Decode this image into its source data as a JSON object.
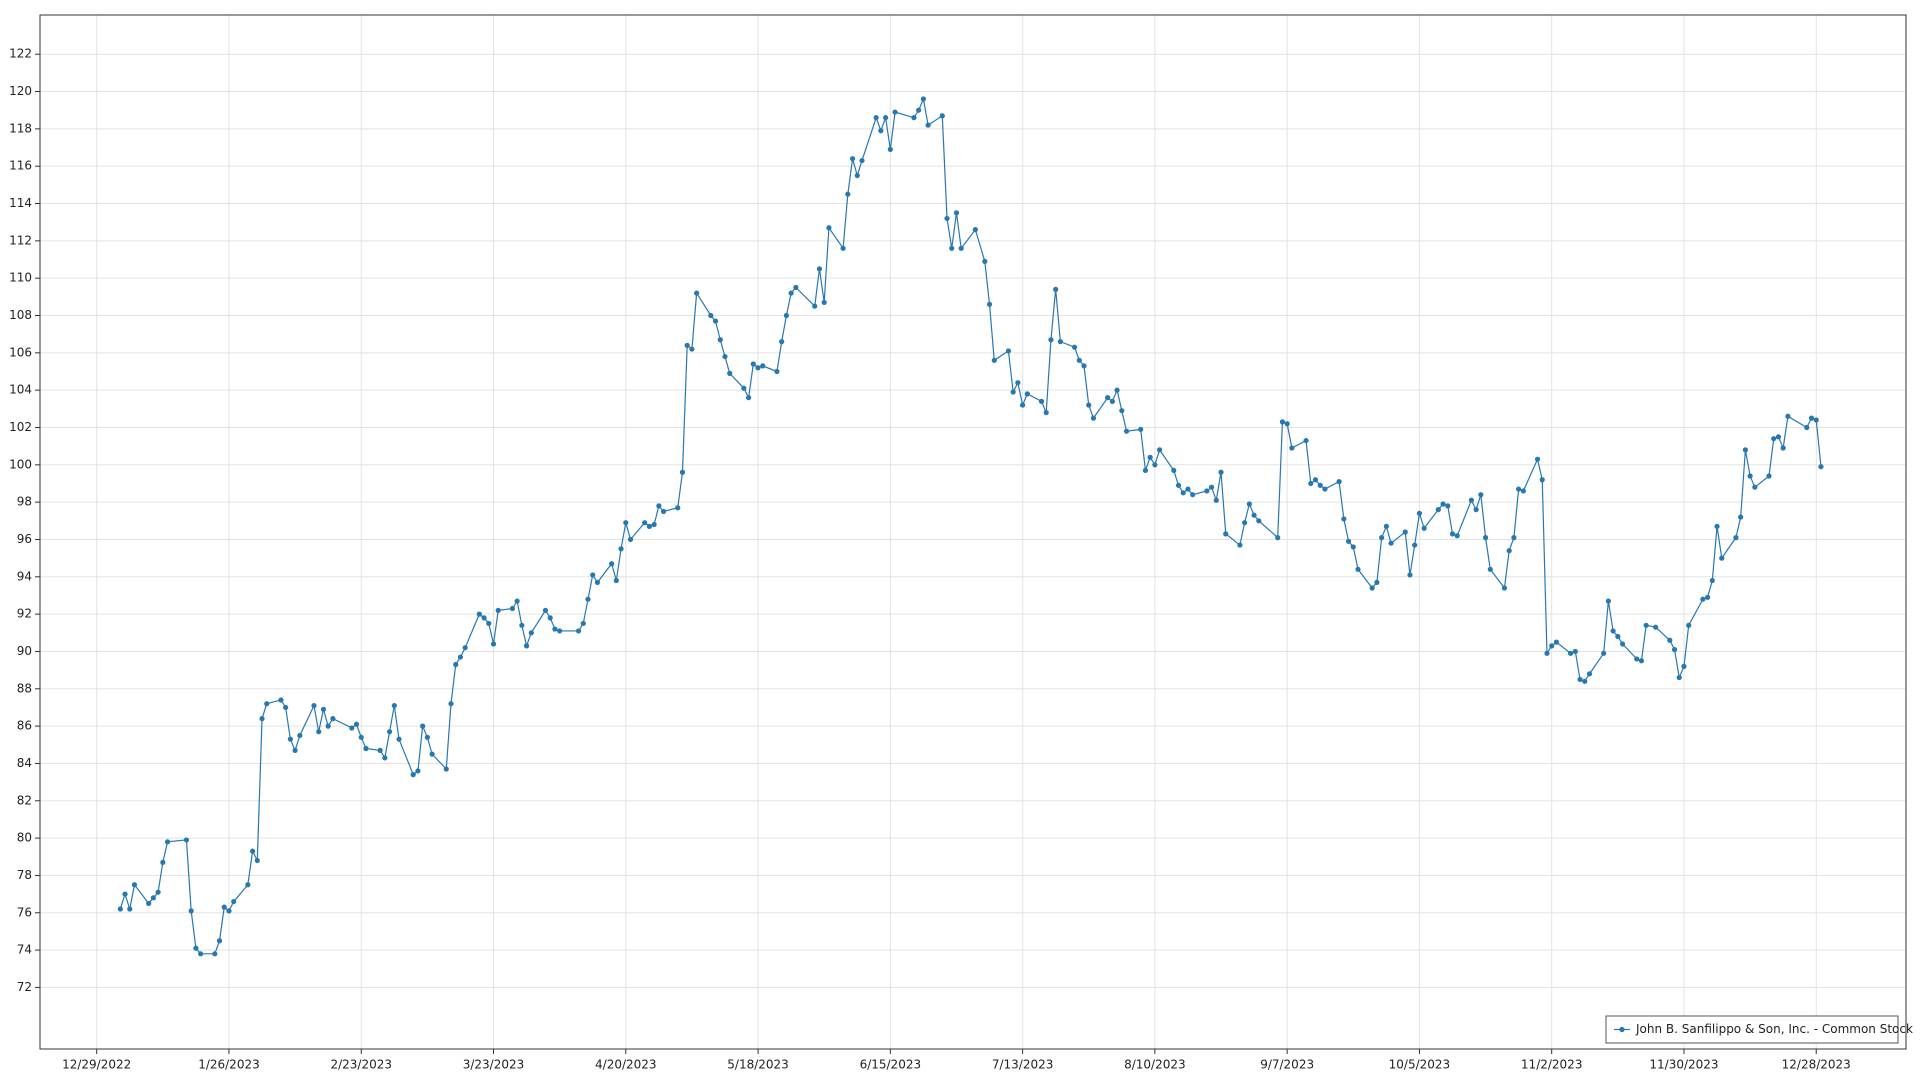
{
  "chart_data": {
    "type": "line",
    "x": [
      "1/3/2023",
      "1/4/2023",
      "1/5/2023",
      "1/6/2023",
      "1/9/2023",
      "1/10/2023",
      "1/11/2023",
      "1/12/2023",
      "1/13/2023",
      "1/17/2023",
      "1/18/2023",
      "1/19/2023",
      "1/20/2023",
      "1/23/2023",
      "1/24/2023",
      "1/25/2023",
      "1/26/2023",
      "1/27/2023",
      "1/30/2023",
      "1/31/2023",
      "2/1/2023",
      "2/2/2023",
      "2/3/2023",
      "2/6/2023",
      "2/7/2023",
      "2/8/2023",
      "2/9/2023",
      "2/10/2023",
      "2/13/2023",
      "2/14/2023",
      "2/15/2023",
      "2/16/2023",
      "2/17/2023",
      "2/21/2023",
      "2/22/2023",
      "2/23/2023",
      "2/24/2023",
      "2/27/2023",
      "2/28/2023",
      "3/1/2023",
      "3/2/2023",
      "3/3/2023",
      "3/6/2023",
      "3/7/2023",
      "3/8/2023",
      "3/9/2023",
      "3/10/2023",
      "3/13/2023",
      "3/14/2023",
      "3/15/2023",
      "3/16/2023",
      "3/17/2023",
      "3/20/2023",
      "3/21/2023",
      "3/22/2023",
      "3/23/2023",
      "3/24/2023",
      "3/27/2023",
      "3/28/2023",
      "3/29/2023",
      "3/30/2023",
      "3/31/2023",
      "4/3/2023",
      "4/4/2023",
      "4/5/2023",
      "4/6/2023",
      "4/10/2023",
      "4/11/2023",
      "4/12/2023",
      "4/13/2023",
      "4/14/2023",
      "4/17/2023",
      "4/18/2023",
      "4/19/2023",
      "4/20/2023",
      "4/21/2023",
      "4/24/2023",
      "4/25/2023",
      "4/26/2023",
      "4/27/2023",
      "4/28/2023",
      "5/1/2023",
      "5/2/2023",
      "5/3/2023",
      "5/4/2023",
      "5/5/2023",
      "5/8/2023",
      "5/9/2023",
      "5/10/2023",
      "5/11/2023",
      "5/12/2023",
      "5/15/2023",
      "5/16/2023",
      "5/17/2023",
      "5/18/2023",
      "5/19/2023",
      "5/22/2023",
      "5/23/2023",
      "5/24/2023",
      "5/25/2023",
      "5/26/2023",
      "5/30/2023",
      "5/31/2023",
      "6/1/2023",
      "6/2/2023",
      "6/5/2023",
      "6/6/2023",
      "6/7/2023",
      "6/8/2023",
      "6/9/2023",
      "6/12/2023",
      "6/13/2023",
      "6/14/2023",
      "6/15/2023",
      "6/16/2023",
      "6/20/2023",
      "6/21/2023",
      "6/22/2023",
      "6/23/2023",
      "6/26/2023",
      "6/27/2023",
      "6/28/2023",
      "6/29/2023",
      "6/30/2023",
      "7/3/2023",
      "7/5/2023",
      "7/6/2023",
      "7/7/2023",
      "7/10/2023",
      "7/11/2023",
      "7/12/2023",
      "7/13/2023",
      "7/14/2023",
      "7/17/2023",
      "7/18/2023",
      "7/19/2023",
      "7/20/2023",
      "7/21/2023",
      "7/24/2023",
      "7/25/2023",
      "7/26/2023",
      "7/27/2023",
      "7/28/2023",
      "7/31/2023",
      "8/1/2023",
      "8/2/2023",
      "8/3/2023",
      "8/4/2023",
      "8/7/2023",
      "8/8/2023",
      "8/9/2023",
      "8/10/2023",
      "8/11/2023",
      "8/14/2023",
      "8/15/2023",
      "8/16/2023",
      "8/17/2023",
      "8/18/2023",
      "8/21/2023",
      "8/22/2023",
      "8/23/2023",
      "8/24/2023",
      "8/25/2023",
      "8/28/2023",
      "8/29/2023",
      "8/30/2023",
      "8/31/2023",
      "9/1/2023",
      "9/5/2023",
      "9/6/2023",
      "9/7/2023",
      "9/8/2023",
      "9/11/2023",
      "9/12/2023",
      "9/13/2023",
      "9/14/2023",
      "9/15/2023",
      "9/18/2023",
      "9/19/2023",
      "9/20/2023",
      "9/21/2023",
      "9/22/2023",
      "9/25/2023",
      "9/26/2023",
      "9/27/2023",
      "9/28/2023",
      "9/29/2023",
      "10/2/2023",
      "10/3/2023",
      "10/4/2023",
      "10/5/2023",
      "10/6/2023",
      "10/9/2023",
      "10/10/2023",
      "10/11/2023",
      "10/12/2023",
      "10/13/2023",
      "10/16/2023",
      "10/17/2023",
      "10/18/2023",
      "10/19/2023",
      "10/20/2023",
      "10/23/2023",
      "10/24/2023",
      "10/25/2023",
      "10/26/2023",
      "10/27/2023",
      "10/30/2023",
      "10/31/2023",
      "11/1/2023",
      "11/2/2023",
      "11/3/2023",
      "11/6/2023",
      "11/7/2023",
      "11/8/2023",
      "11/9/2023",
      "11/10/2023",
      "11/13/2023",
      "11/14/2023",
      "11/15/2023",
      "11/16/2023",
      "11/17/2023",
      "11/20/2023",
      "11/21/2023",
      "11/22/2023",
      "11/24/2023",
      "11/27/2023",
      "11/28/2023",
      "11/29/2023",
      "11/30/2023",
      "12/1/2023",
      "12/4/2023",
      "12/5/2023",
      "12/6/2023",
      "12/7/2023",
      "12/8/2023",
      "12/11/2023",
      "12/12/2023",
      "12/13/2023",
      "12/14/2023",
      "12/15/2023",
      "12/18/2023",
      "12/19/2023",
      "12/20/2023",
      "12/21/2023",
      "12/22/2023",
      "12/26/2023",
      "12/27/2023",
      "12/28/2023",
      "12/29/2023"
    ],
    "series": [
      {
        "name": "John B. Sanfilippo & Son, Inc. - Common Stock",
        "color": "#2878b0",
        "values": [
          76.2,
          77.0,
          76.2,
          77.5,
          76.5,
          76.8,
          77.1,
          78.7,
          79.8,
          79.9,
          76.1,
          74.1,
          73.8,
          73.8,
          74.5,
          76.3,
          76.1,
          76.6,
          77.5,
          79.3,
          78.8,
          86.4,
          87.2,
          87.4,
          87.0,
          85.3,
          84.7,
          85.5,
          87.1,
          85.7,
          86.9,
          86.0,
          86.4,
          85.9,
          86.1,
          85.4,
          84.8,
          84.7,
          84.3,
          85.7,
          87.1,
          85.3,
          83.4,
          83.6,
          86.0,
          85.4,
          84.5,
          83.7,
          87.2,
          89.3,
          89.7,
          90.2,
          92.0,
          91.8,
          91.5,
          90.4,
          92.2,
          92.3,
          92.7,
          91.4,
          90.3,
          91.0,
          92.2,
          91.8,
          91.2,
          91.1,
          91.1,
          91.5,
          92.8,
          94.1,
          93.7,
          94.7,
          93.8,
          95.5,
          96.9,
          96.0,
          96.9,
          96.7,
          96.8,
          97.8,
          97.5,
          97.7,
          99.6,
          106.4,
          106.2,
          109.2,
          108.0,
          107.7,
          106.7,
          105.8,
          104.9,
          104.1,
          103.6,
          105.4,
          105.2,
          105.3,
          105.0,
          106.6,
          108.0,
          109.2,
          109.5,
          108.5,
          110.5,
          108.7,
          112.7,
          111.6,
          114.5,
          116.4,
          115.5,
          116.3,
          118.6,
          117.9,
          118.6,
          116.9,
          118.9,
          118.6,
          119.0,
          119.6,
          118.2,
          118.7,
          113.2,
          111.6,
          113.5,
          111.6,
          112.6,
          110.9,
          108.6,
          105.6,
          106.1,
          103.9,
          104.4,
          103.2,
          103.8,
          103.4,
          102.8,
          106.7,
          109.4,
          106.6,
          106.3,
          105.6,
          105.3,
          103.2,
          102.5,
          103.6,
          103.4,
          104.0,
          102.9,
          101.8,
          101.9,
          99.7,
          100.4,
          100.0,
          100.8,
          99.7,
          98.9,
          98.5,
          98.7,
          98.4,
          98.6,
          98.8,
          98.1,
          99.6,
          96.3,
          95.7,
          96.9,
          97.9,
          97.3,
          97.0,
          96.1,
          102.3,
          102.2,
          100.9,
          101.3,
          99.0,
          99.2,
          98.9,
          98.7,
          99.1,
          97.1,
          95.9,
          95.6,
          94.4,
          93.4,
          93.7,
          96.1,
          96.7,
          95.8,
          96.4,
          94.1,
          95.7,
          97.4,
          96.6,
          97.6,
          97.9,
          97.8,
          96.3,
          96.2,
          98.1,
          97.6,
          98.4,
          96.1,
          94.4,
          93.4,
          95.4,
          96.1,
          98.7,
          98.6,
          100.3,
          99.2,
          89.9,
          90.3,
          90.5,
          89.9,
          90.0,
          88.5,
          88.4,
          88.8,
          89.9,
          92.7,
          91.1,
          90.8,
          90.4,
          89.6,
          89.5,
          91.4,
          91.3,
          90.6,
          90.1,
          88.6,
          89.2,
          91.4,
          92.8,
          92.9,
          93.8,
          96.7,
          95.0,
          96.1,
          97.2,
          100.8,
          99.4,
          98.8,
          99.4,
          101.4,
          101.5,
          100.9,
          102.6,
          102.0,
          102.5,
          102.4,
          99.9
        ]
      }
    ],
    "xlim": [
      "12/17/2022",
      "1/16/2024"
    ],
    "xticks": [
      "12/29/2022",
      "1/26/2023",
      "2/23/2023",
      "3/23/2023",
      "4/20/2023",
      "5/18/2023",
      "6/15/2023",
      "7/13/2023",
      "8/10/2023",
      "9/7/2023",
      "10/5/2023",
      "11/2/2023",
      "11/30/2023",
      "12/28/2023"
    ],
    "ylim": [
      68.7,
      124.1
    ],
    "yticks": [
      72,
      74,
      76,
      78,
      80,
      82,
      84,
      86,
      88,
      90,
      92,
      94,
      96,
      98,
      100,
      102,
      104,
      106,
      108,
      110,
      112,
      114,
      116,
      118,
      120,
      122
    ],
    "grid": true,
    "legend": "lower right"
  }
}
